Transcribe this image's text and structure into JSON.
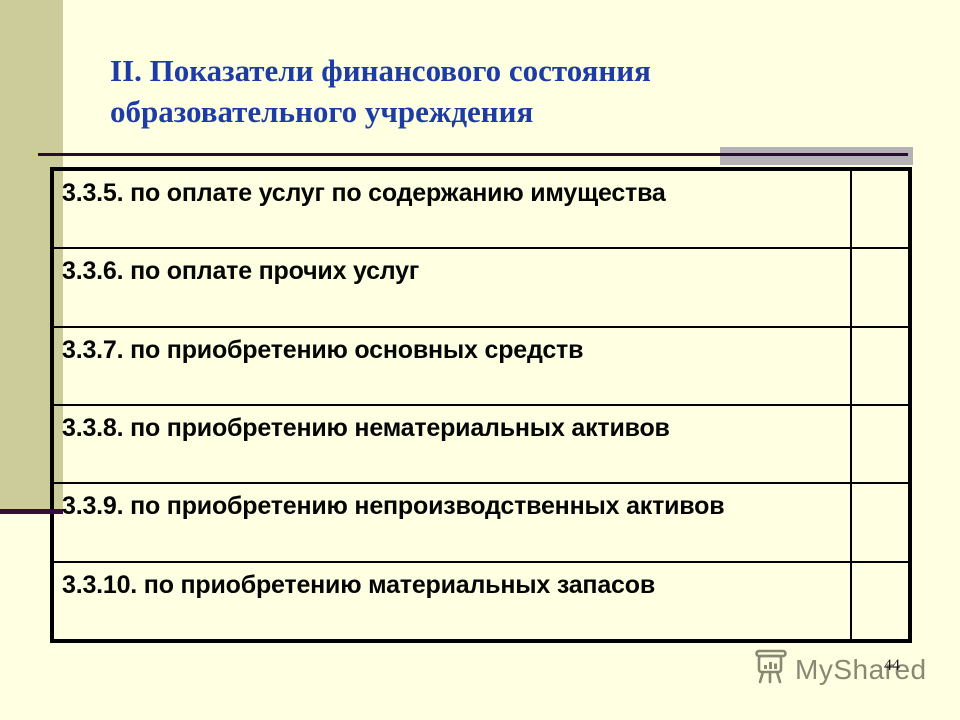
{
  "slide": {
    "title_line1": "II. Показатели финансового состояния",
    "title_line2": "образовательного учреждения",
    "page_number": "44"
  },
  "table": {
    "rows": [
      {
        "label": "3.3.5. по оплате услуг по содержанию имущества",
        "value": ""
      },
      {
        "label": "3.3.6. по оплате прочих услуг",
        "value": ""
      },
      {
        "label": "3.3.7. по приобретению основных средств",
        "value": ""
      },
      {
        "label": "3.3.8. по приобретению нематериальных активов",
        "value": ""
      },
      {
        "label": "3.3.9. по приобретению непроизводственных активов",
        "value": ""
      },
      {
        "label": "3.3.10. по приобретению материальных запасов",
        "value": ""
      }
    ]
  },
  "watermark": {
    "text": "MyShared",
    "icon": "easel-chart-icon"
  },
  "colors": {
    "background": "#FFFFE2",
    "left_bar": "#CBCC99",
    "title_blue": "#1D3CA6",
    "plum_line": "#330D3D",
    "gray_bar": "#B3B3B6",
    "table_border": "#000000",
    "watermark": "#6E6E5B"
  }
}
